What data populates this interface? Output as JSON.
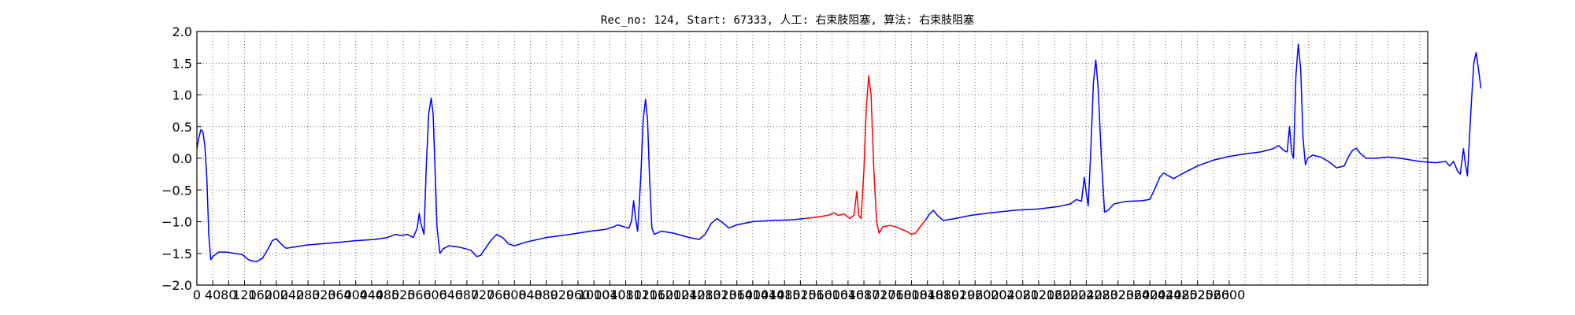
{
  "chart_data": {
    "type": "line",
    "title": "Rec_no: 124, Start: 67333, 人工: 右束肢阻塞, 算法: 右束肢阻塞",
    "xlabel": "",
    "ylabel": "",
    "xlim": [
      0,
      3100
    ],
    "ylim": [
      -2.0,
      2.0
    ],
    "grid": true,
    "ytick_labels": [
      "2.0",
      "1.5",
      "1.0",
      "0.5",
      "0.0",
      "−0.5",
      "−1.0",
      "−1.5",
      "−2.0"
    ],
    "ytick_values": [
      2.0,
      1.5,
      1.0,
      0.5,
      0.0,
      -0.5,
      -1.0,
      -1.5,
      -2.0
    ],
    "xtick_labels": [
      "0",
      "40",
      "80",
      "120",
      "160",
      "200",
      "240",
      "280",
      "320",
      "360",
      "400",
      "440",
      "480",
      "520",
      "560",
      "600",
      "640",
      "680",
      "720",
      "760",
      "800",
      "840",
      "880",
      "920",
      "960",
      "1000",
      "1040",
      "1080",
      "1120",
      "1160",
      "1200",
      "1240",
      "1280",
      "1320",
      "1360",
      "1400",
      "1440",
      "1480",
      "1520",
      "1560",
      "1600",
      "1640",
      "1680",
      "1720",
      "1760",
      "1800",
      "1840",
      "1880",
      "1920",
      "1960",
      "2000",
      "2040",
      "2080",
      "2120",
      "2160",
      "2200",
      "2240",
      "2280",
      "2320",
      "2360",
      "2400",
      "2440",
      "2480",
      "2520",
      "2560",
      "2600"
    ],
    "xtick_values": [
      0,
      40,
      80,
      120,
      160,
      200,
      240,
      280,
      320,
      360,
      400,
      440,
      480,
      520,
      560,
      600,
      640,
      680,
      720,
      760,
      800,
      840,
      880,
      920,
      960,
      1000,
      1040,
      1080,
      1120,
      1160,
      1200,
      1240,
      1280,
      1320,
      1360,
      1400,
      1440,
      1480,
      1520,
      1560,
      1600,
      1640,
      1680,
      1720,
      1760,
      1800,
      1840,
      1880,
      1920,
      1960,
      2000,
      2040,
      2080,
      2120,
      2160,
      2200,
      2240,
      2280,
      2320,
      2360,
      2400,
      2440,
      2480,
      2520,
      2560,
      2600
    ],
    "grid_x": [
      40,
      80,
      120,
      160,
      200,
      240,
      280,
      320,
      360,
      400,
      440,
      480,
      520,
      560,
      600,
      640,
      680,
      720,
      760,
      800,
      840,
      880,
      920,
      960,
      1000,
      1040,
      1080,
      1120,
      1160,
      1200,
      1240,
      1280,
      1320,
      1360,
      1400,
      1440,
      1480,
      1520,
      1560,
      1600,
      1640,
      1680,
      1720,
      1760,
      1800,
      1840,
      1880,
      1920,
      1960,
      2000,
      2040,
      2080,
      2120,
      2160,
      2200,
      2240,
      2280,
      2320,
      2360,
      2400,
      2440,
      2480,
      2520,
      2560,
      2600,
      2640,
      2680,
      2720,
      2760,
      2800,
      2840,
      2880,
      2920,
      2960,
      3000,
      3040,
      3080
    ],
    "series": [
      {
        "color": "#0000ff",
        "points": [
          [
            0,
            0.15
          ],
          [
            5,
            0.32
          ],
          [
            10,
            0.45
          ],
          [
            15,
            0.42
          ],
          [
            20,
            0.2
          ],
          [
            25,
            -0.3
          ],
          [
            30,
            -1.2
          ],
          [
            35,
            -1.6
          ],
          [
            40,
            -1.55
          ],
          [
            55,
            -1.48
          ],
          [
            75,
            -1.48
          ],
          [
            95,
            -1.5
          ],
          [
            115,
            -1.52
          ],
          [
            130,
            -1.6
          ],
          [
            140,
            -1.62
          ],
          [
            150,
            -1.63
          ],
          [
            165,
            -1.58
          ],
          [
            180,
            -1.42
          ],
          [
            190,
            -1.3
          ],
          [
            200,
            -1.27
          ],
          [
            212,
            -1.35
          ],
          [
            225,
            -1.42
          ],
          [
            245,
            -1.4
          ],
          [
            275,
            -1.37
          ],
          [
            310,
            -1.35
          ],
          [
            350,
            -1.33
          ],
          [
            400,
            -1.3
          ],
          [
            450,
            -1.28
          ],
          [
            480,
            -1.25
          ],
          [
            500,
            -1.2
          ],
          [
            515,
            -1.22
          ],
          [
            530,
            -1.2
          ],
          [
            545,
            -1.25
          ],
          [
            555,
            -1.1
          ],
          [
            560,
            -0.87
          ],
          [
            565,
            -1.05
          ],
          [
            572,
            -1.2
          ],
          [
            578,
            -0.1
          ],
          [
            584,
            0.7
          ],
          [
            590,
            0.95
          ],
          [
            595,
            0.7
          ],
          [
            600,
            -0.2
          ],
          [
            605,
            -1.1
          ],
          [
            612,
            -1.5
          ],
          [
            620,
            -1.43
          ],
          [
            635,
            -1.38
          ],
          [
            660,
            -1.4
          ],
          [
            690,
            -1.45
          ],
          [
            705,
            -1.55
          ],
          [
            715,
            -1.53
          ],
          [
            740,
            -1.3
          ],
          [
            755,
            -1.2
          ],
          [
            770,
            -1.25
          ],
          [
            785,
            -1.35
          ],
          [
            800,
            -1.38
          ],
          [
            830,
            -1.32
          ],
          [
            880,
            -1.25
          ],
          [
            940,
            -1.2
          ],
          [
            990,
            -1.15
          ],
          [
            1030,
            -1.12
          ],
          [
            1050,
            -1.08
          ],
          [
            1060,
            -1.05
          ],
          [
            1075,
            -1.08
          ],
          [
            1088,
            -1.1
          ],
          [
            1095,
            -0.98
          ],
          [
            1100,
            -0.67
          ],
          [
            1105,
            -0.95
          ],
          [
            1110,
            -1.15
          ],
          [
            1118,
            -0.3
          ],
          [
            1124,
            0.6
          ],
          [
            1130,
            0.93
          ],
          [
            1135,
            0.6
          ],
          [
            1140,
            -0.3
          ],
          [
            1146,
            -1.1
          ],
          [
            1152,
            -1.2
          ],
          [
            1170,
            -1.15
          ],
          [
            1200,
            -1.18
          ],
          [
            1240,
            -1.25
          ],
          [
            1265,
            -1.28
          ],
          [
            1280,
            -1.2
          ],
          [
            1295,
            -1.03
          ],
          [
            1310,
            -0.95
          ],
          [
            1325,
            -1.02
          ],
          [
            1340,
            -1.1
          ],
          [
            1360,
            -1.05
          ],
          [
            1400,
            -1.0
          ],
          [
            1450,
            -0.98
          ],
          [
            1500,
            -0.97
          ],
          [
            1530,
            -0.95
          ]
        ]
      },
      {
        "color": "#ff0000",
        "points": [
          [
            1530,
            -0.95
          ],
          [
            1560,
            -0.93
          ],
          [
            1590,
            -0.9
          ],
          [
            1605,
            -0.86
          ],
          [
            1615,
            -0.9
          ],
          [
            1630,
            -0.88
          ],
          [
            1645,
            -0.95
          ],
          [
            1655,
            -0.9
          ],
          [
            1662,
            -0.52
          ],
          [
            1667,
            -0.9
          ],
          [
            1673,
            -0.95
          ],
          [
            1680,
            -0.2
          ],
          [
            1686,
            0.8
          ],
          [
            1692,
            1.3
          ],
          [
            1698,
            1.0
          ],
          [
            1705,
            -0.2
          ],
          [
            1712,
            -1.0
          ],
          [
            1718,
            -1.18
          ],
          [
            1728,
            -1.08
          ],
          [
            1745,
            -1.06
          ],
          [
            1760,
            -1.08
          ],
          [
            1775,
            -1.12
          ],
          [
            1790,
            -1.16
          ],
          [
            1800,
            -1.2
          ],
          [
            1810,
            -1.18
          ],
          [
            1825,
            -1.05
          ],
          [
            1835,
            -0.98
          ]
        ]
      },
      {
        "color": "#0000ff",
        "points": [
          [
            1835,
            -0.98
          ],
          [
            1845,
            -0.88
          ],
          [
            1855,
            -0.82
          ],
          [
            1865,
            -0.9
          ],
          [
            1880,
            -0.98
          ],
          [
            1910,
            -0.95
          ],
          [
            1950,
            -0.9
          ],
          [
            2000,
            -0.86
          ],
          [
            2060,
            -0.82
          ],
          [
            2120,
            -0.8
          ],
          [
            2170,
            -0.76
          ],
          [
            2200,
            -0.72
          ],
          [
            2215,
            -0.65
          ],
          [
            2228,
            -0.68
          ],
          [
            2235,
            -0.3
          ],
          [
            2240,
            -0.55
          ],
          [
            2245,
            -0.75
          ],
          [
            2252,
            0.2
          ],
          [
            2258,
            1.2
          ],
          [
            2264,
            1.55
          ],
          [
            2270,
            1.1
          ],
          [
            2278,
            0.0
          ],
          [
            2286,
            -0.85
          ],
          [
            2295,
            -0.82
          ],
          [
            2310,
            -0.72
          ],
          [
            2340,
            -0.68
          ],
          [
            2380,
            -0.67
          ],
          [
            2400,
            -0.65
          ],
          [
            2415,
            -0.45
          ],
          [
            2425,
            -0.3
          ],
          [
            2435,
            -0.23
          ],
          [
            2445,
            -0.27
          ],
          [
            2460,
            -0.32
          ],
          [
            2480,
            -0.25
          ],
          [
            2520,
            -0.12
          ],
          [
            2560,
            -0.03
          ],
          [
            2600,
            0.03
          ],
          [
            2640,
            0.07
          ],
          [
            2680,
            0.1
          ],
          [
            2710,
            0.15
          ],
          [
            2725,
            0.2
          ],
          [
            2738,
            0.12
          ],
          [
            2746,
            0.1
          ],
          [
            2752,
            0.5
          ],
          [
            2757,
            0.1
          ],
          [
            2762,
            0.0
          ],
          [
            2768,
            1.3
          ],
          [
            2774,
            1.8
          ],
          [
            2780,
            1.4
          ],
          [
            2786,
            0.3
          ],
          [
            2792,
            -0.1
          ],
          [
            2798,
            0.0
          ],
          [
            2810,
            0.05
          ],
          [
            2830,
            0.02
          ],
          [
            2850,
            -0.05
          ],
          [
            2870,
            -0.15
          ],
          [
            2890,
            -0.12
          ],
          [
            2900,
            0.02
          ],
          [
            2910,
            0.12
          ],
          [
            2920,
            0.16
          ],
          [
            2930,
            0.08
          ],
          [
            2945,
            0.0
          ],
          [
            2970,
            0.0
          ],
          [
            3000,
            0.02
          ],
          [
            3030,
            0.0
          ],
          [
            3080,
            -0.05
          ],
          [
            3120,
            -0.07
          ],
          [
            3145,
            -0.05
          ],
          [
            3155,
            -0.12
          ],
          [
            3165,
            -0.05
          ],
          [
            3175,
            -0.2
          ],
          [
            3182,
            -0.25
          ],
          [
            3190,
            0.15
          ],
          [
            3195,
            -0.1
          ],
          [
            3200,
            -0.28
          ],
          [
            3210,
            0.9
          ],
          [
            3216,
            1.5
          ],
          [
            3222,
            1.67
          ],
          [
            3228,
            1.4
          ],
          [
            3234,
            1.1
          ]
        ]
      }
    ]
  }
}
